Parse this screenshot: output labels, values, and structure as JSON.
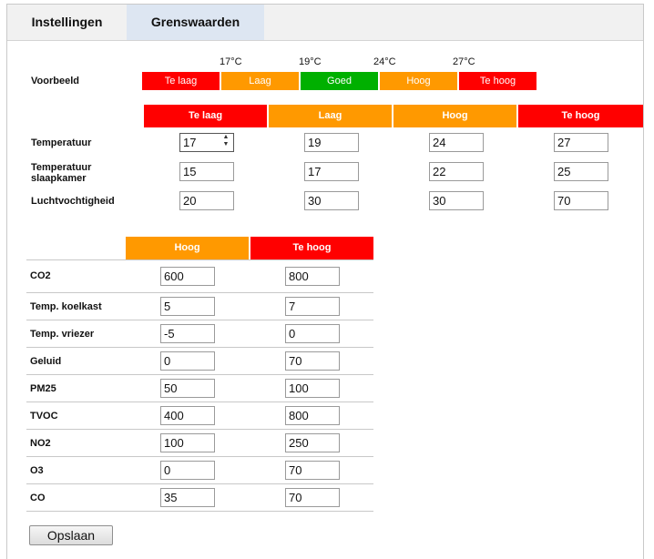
{
  "tabs": [
    {
      "label": "Instellingen"
    },
    {
      "label": "Grenswaarden"
    }
  ],
  "voorbeeld": {
    "label": "Voorbeeld",
    "degrees": [
      "17°C",
      "19°C",
      "24°C",
      "27°C"
    ],
    "swatches": [
      {
        "label": "Te laag",
        "color": "#ff0000"
      },
      {
        "label": "Laag",
        "color": "#ff9900"
      },
      {
        "label": "Goed",
        "color": "#00b000"
      },
      {
        "label": "Hoog",
        "color": "#ff9900"
      },
      {
        "label": "Te hoog",
        "color": "#ff0000"
      }
    ]
  },
  "table1": {
    "headers": [
      "Te laag",
      "Laag",
      "Hoog",
      "Te hoog"
    ],
    "rows": [
      {
        "label": "Temperatuur",
        "values": [
          "17",
          "19",
          "24",
          "27"
        ]
      },
      {
        "label_line1": "Temperatuur",
        "label_line2": "slaapkamer",
        "values": [
          "15",
          "17",
          "22",
          "25"
        ]
      },
      {
        "label": "Luchtvochtigheid",
        "values": [
          "20",
          "30",
          "30",
          "70"
        ]
      }
    ]
  },
  "table2": {
    "headers": [
      "Hoog",
      "Te hoog"
    ],
    "rows": [
      {
        "label": "CO2",
        "values": [
          "600",
          "800"
        ]
      },
      {
        "label": "Temp. koelkast",
        "values": [
          "5",
          "7"
        ]
      },
      {
        "label": "Temp. vriezer",
        "values": [
          "-5",
          "0"
        ]
      },
      {
        "label": "Geluid",
        "values": [
          "0",
          "70"
        ]
      },
      {
        "label": "PM25",
        "values": [
          "50",
          "100"
        ]
      },
      {
        "label": "TVOC",
        "values": [
          "400",
          "800"
        ]
      },
      {
        "label": "NO2",
        "values": [
          "100",
          "250"
        ]
      },
      {
        "label": "O3",
        "values": [
          "0",
          "70"
        ]
      },
      {
        "label": "CO",
        "values": [
          "35",
          "70"
        ]
      }
    ]
  },
  "save_label": "Opslaan",
  "colors": {
    "red": "#ff0000",
    "orange": "#ff9900",
    "green": "#00b000",
    "active_tab": "#dde6f2"
  }
}
